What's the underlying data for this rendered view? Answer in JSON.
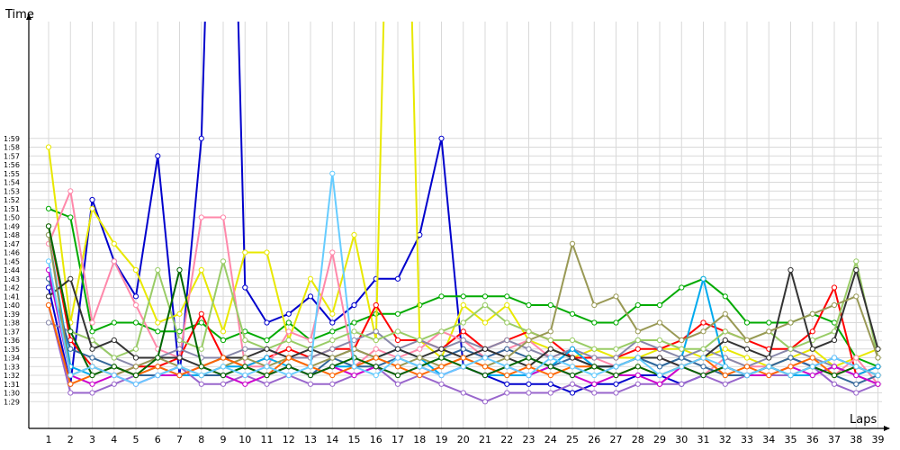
{
  "chart_data": {
    "type": "line",
    "ylabel": "Time",
    "xlabel": "Laps",
    "x": [
      1,
      2,
      3,
      4,
      5,
      6,
      7,
      8,
      9,
      10,
      11,
      12,
      13,
      14,
      15,
      16,
      17,
      18,
      19,
      20,
      21,
      22,
      23,
      24,
      25,
      26,
      27,
      28,
      29,
      30,
      31,
      32,
      33,
      34,
      35,
      36,
      37,
      38,
      39
    ],
    "y_tick_labels": [
      "1:29",
      "1:30",
      "1:31",
      "1:32",
      "1:33",
      "1:34",
      "1:35",
      "1:36",
      "1:37",
      "1:38",
      "1:39",
      "1:40",
      "1:41",
      "1:42",
      "1:43",
      "1:44",
      "1:45",
      "1:46",
      "1:47",
      "1:48",
      "1:49",
      "1:50",
      "1:51",
      "1:52",
      "1:53",
      "1:54",
      "1:55",
      "1:56",
      "1:57",
      "1:58",
      "1:59"
    ],
    "ylim_seconds": [
      88,
      122
    ],
    "grid": true,
    "legend": "none",
    "series": [
      {
        "color": "#0000cc",
        "values": [
          102,
          91,
          112,
          105,
          101,
          117,
          92,
          119,
          200,
          102,
          98,
          99,
          101,
          98,
          100,
          103,
          103,
          108,
          119,
          93,
          92,
          91,
          91,
          91,
          90,
          91,
          91,
          92,
          92,
          91,
          92,
          93,
          92,
          93,
          94,
          93,
          94,
          93,
          92
        ]
      },
      {
        "color": "#00aa00",
        "values": [
          111,
          110,
          97,
          98,
          98,
          97,
          97,
          98,
          96,
          97,
          96,
          98,
          96,
          97,
          98,
          99,
          99,
          100,
          101,
          101,
          101,
          101,
          100,
          100,
          99,
          98,
          98,
          100,
          100,
          102,
          103,
          101,
          98,
          98,
          98,
          99,
          98,
          94,
          93
        ]
      },
      {
        "color": "#e8e800",
        "values": [
          118,
          98,
          111,
          107,
          104,
          98,
          99,
          104,
          97,
          106,
          106,
          96,
          103,
          99,
          108,
          96,
          200,
          96,
          94,
          100,
          98,
          100,
          96,
          95,
          94,
          95,
          94,
          94,
          95,
          95,
          94,
          95,
          94,
          93,
          94,
          95,
          93,
          94,
          95
        ]
      },
      {
        "color": "#ff0000",
        "values": [
          109,
          96,
          93,
          92,
          93,
          93,
          94,
          99,
          94,
          93,
          94,
          95,
          94,
          95,
          95,
          100,
          96,
          96,
          95,
          97,
          95,
          96,
          97,
          96,
          94,
          94,
          94,
          95,
          95,
          96,
          98,
          97,
          96,
          95,
          95,
          97,
          102,
          92,
          93
        ]
      },
      {
        "color": "#ff88aa",
        "values": [
          107,
          113,
          98,
          105,
          100,
          95,
          94,
          110,
          110,
          93,
          93,
          97,
          96,
          106,
          93,
          95,
          94,
          95,
          97,
          96,
          94,
          95,
          96,
          94,
          95,
          94,
          93,
          94,
          94,
          93,
          92,
          94,
          93,
          93,
          92,
          93,
          92,
          94,
          91
        ]
      },
      {
        "color": "#8888aa",
        "values": [
          98,
          97,
          96,
          94,
          93,
          94,
          95,
          94,
          94,
          95,
          95,
          94,
          94,
          95,
          96,
          97,
          95,
          96,
          95,
          96,
          95,
          96,
          95,
          94,
          95,
          94,
          94,
          96,
          95,
          94,
          95,
          94,
          93,
          94,
          95,
          94,
          93,
          92,
          91
        ]
      },
      {
        "color": "#00aaee",
        "values": [
          108,
          93,
          92,
          93,
          92,
          93,
          92,
          92,
          93,
          93,
          94,
          93,
          92,
          93,
          93,
          94,
          95,
          94,
          92,
          93,
          92,
          92,
          92,
          93,
          95,
          93,
          93,
          94,
          93,
          94,
          103,
          93,
          92,
          93,
          92,
          92,
          93,
          92,
          93
        ]
      },
      {
        "color": "#9966cc",
        "values": [
          100,
          90,
          90,
          91,
          92,
          92,
          93,
          91,
          91,
          92,
          91,
          92,
          91,
          91,
          92,
          93,
          91,
          92,
          91,
          90,
          89,
          90,
          90,
          90,
          91,
          90,
          90,
          91,
          91,
          91,
          92,
          91,
          92,
          92,
          92,
          93,
          91,
          90,
          91
        ]
      },
      {
        "color": "#336699",
        "values": [
          103,
          95,
          94,
          93,
          92,
          92,
          93,
          92,
          92,
          93,
          92,
          93,
          92,
          94,
          93,
          93,
          94,
          93,
          94,
          95,
          94,
          95,
          94,
          93,
          94,
          93,
          93,
          94,
          93,
          94,
          93,
          92,
          92,
          93,
          94,
          93,
          92,
          91,
          92
        ]
      },
      {
        "color": "#99cc66",
        "values": [
          109,
          97,
          96,
          94,
          95,
          104,
          96,
          95,
          105,
          96,
          95,
          96,
          95,
          96,
          97,
          96,
          97,
          96,
          97,
          98,
          100,
          98,
          97,
          96,
          96,
          95,
          95,
          96,
          96,
          95,
          95,
          97,
          96,
          97,
          95,
          96,
          97,
          105,
          94
        ]
      },
      {
        "color": "#333333",
        "values": [
          101,
          103,
          95,
          96,
          94,
          94,
          94,
          93,
          94,
          94,
          95,
          94,
          95,
          94,
          95,
          94,
          95,
          94,
          95,
          94,
          95,
          94,
          93,
          95,
          94,
          93,
          93,
          94,
          94,
          93,
          94,
          96,
          95,
          94,
          104,
          95,
          96,
          104,
          95
        ]
      },
      {
        "color": "#999955",
        "values": [
          108,
          92,
          93,
          92,
          93,
          94,
          93,
          92,
          93,
          94,
          93,
          94,
          93,
          94,
          95,
          94,
          93,
          94,
          93,
          94,
          93,
          94,
          96,
          97,
          107,
          100,
          101,
          97,
          98,
          96,
          97,
          99,
          96,
          97,
          98,
          99,
          100,
          101,
          94
        ]
      },
      {
        "color": "#cc00cc",
        "values": [
          104,
          92,
          91,
          92,
          91,
          92,
          92,
          93,
          92,
          91,
          92,
          93,
          92,
          93,
          92,
          93,
          92,
          93,
          92,
          93,
          92,
          93,
          92,
          93,
          92,
          91,
          92,
          92,
          91,
          93,
          92,
          93,
          92,
          92,
          93,
          92,
          93,
          92,
          91
        ]
      },
      {
        "color": "#ff6600",
        "values": [
          100,
          91,
          92,
          93,
          92,
          93,
          92,
          93,
          94,
          93,
          92,
          94,
          93,
          92,
          93,
          94,
          93,
          92,
          93,
          94,
          93,
          92,
          93,
          92,
          93,
          93,
          92,
          93,
          92,
          93,
          94,
          92,
          93,
          92,
          93,
          94,
          92,
          93,
          92
        ]
      },
      {
        "color": "#006600",
        "values": [
          109,
          97,
          92,
          93,
          92,
          94,
          104,
          93,
          92,
          93,
          92,
          93,
          92,
          93,
          94,
          93,
          92,
          93,
          94,
          93,
          92,
          93,
          94,
          93,
          92,
          93,
          92,
          93,
          92,
          93,
          92,
          93,
          92,
          93,
          92,
          93,
          92,
          93,
          92
        ]
      },
      {
        "color": "#66ccff",
        "values": [
          105,
          92,
          93,
          92,
          91,
          92,
          93,
          92,
          93,
          92,
          93,
          92,
          93,
          115,
          93,
          92,
          94,
          93,
          92,
          93,
          94,
          93,
          92,
          94,
          93,
          92,
          93,
          94,
          92,
          93,
          94,
          93,
          92,
          93,
          92,
          93,
          94,
          93,
          92
        ]
      }
    ]
  }
}
